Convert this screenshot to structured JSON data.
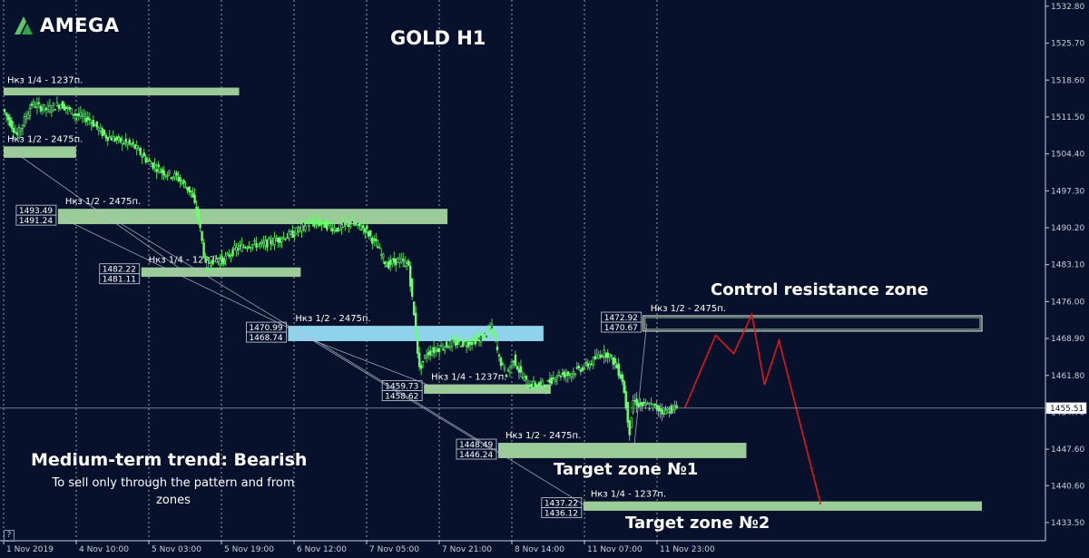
{
  "logo": {
    "text": "AMEGA"
  },
  "title": "GOLD H1",
  "trend": {
    "title": "Medium-term trend: Bearish",
    "note": "To sell only through the pattern and from zones"
  },
  "annotations": {
    "control_zone": "Control resistance zone",
    "target1": "Target zone №1",
    "target2": "Target zone №2",
    "help": "?"
  },
  "colors": {
    "background": "#07112b",
    "candle": "#6bff6b",
    "zone_green": "#9ccb9a",
    "zone_blue": "#8fd2ec",
    "forecast": "#e01818",
    "grid": "#ffffff"
  },
  "chart_data": {
    "type": "candlestick",
    "title": "GOLD H1",
    "ylim": [
      1430,
      1534
    ],
    "y_ticks": [
      "1532.80",
      "1525.70",
      "1518.60",
      "1511.50",
      "1504.40",
      "1497.30",
      "1490.20",
      "1483.10",
      "1476.00",
      "1468.90",
      "1461.80",
      "1454.70",
      "1447.60",
      "1440.60",
      "1433.50"
    ],
    "x_ticks": [
      "1 Nov 2019",
      "4 Nov 10:00",
      "5 Nov 03:00",
      "5 Nov 19:00",
      "6 Nov 12:00",
      "7 Nov 05:00",
      "7 Nov 21:00",
      "8 Nov 14:00",
      "11 Nov 07:00",
      "11 Nov 23:00"
    ],
    "current_price": "1455.51",
    "price_path": [
      [
        0,
        1513
      ],
      [
        8,
        1508
      ],
      [
        16,
        1514
      ],
      [
        24,
        1513
      ],
      [
        32,
        1514
      ],
      [
        40,
        1512
      ],
      [
        48,
        1511
      ],
      [
        56,
        1508
      ],
      [
        64,
        1507
      ],
      [
        72,
        1506
      ],
      [
        80,
        1503
      ],
      [
        88,
        1501
      ],
      [
        96,
        1500
      ],
      [
        104,
        1497
      ],
      [
        108,
        1492
      ],
      [
        112,
        1483
      ],
      [
        116,
        1484
      ],
      [
        122,
        1484
      ],
      [
        128,
        1486
      ],
      [
        136,
        1487
      ],
      [
        144,
        1487
      ],
      [
        152,
        1488
      ],
      [
        160,
        1489
      ],
      [
        168,
        1491
      ],
      [
        176,
        1491
      ],
      [
        184,
        1490
      ],
      [
        192,
        1491
      ],
      [
        200,
        1490
      ],
      [
        206,
        1487
      ],
      [
        212,
        1483
      ],
      [
        218,
        1484
      ],
      [
        224,
        1483
      ],
      [
        228,
        1470
      ],
      [
        230,
        1463
      ],
      [
        234,
        1466
      ],
      [
        240,
        1467
      ],
      [
        248,
        1468
      ],
      [
        256,
        1468
      ],
      [
        264,
        1469
      ],
      [
        270,
        1471
      ],
      [
        274,
        1465
      ],
      [
        278,
        1462
      ],
      [
        282,
        1465
      ],
      [
        286,
        1462
      ],
      [
        290,
        1460
      ],
      [
        296,
        1460
      ],
      [
        300,
        1460
      ],
      [
        306,
        1462
      ],
      [
        312,
        1462
      ],
      [
        318,
        1463
      ],
      [
        324,
        1464
      ],
      [
        330,
        1466
      ],
      [
        334,
        1466
      ],
      [
        338,
        1464
      ],
      [
        342,
        1461
      ],
      [
        346,
        1451
      ],
      [
        348,
        1457
      ],
      [
        352,
        1456
      ],
      [
        358,
        1456
      ],
      [
        364,
        1455
      ],
      [
        372,
        1455.51
      ]
    ],
    "levels": [
      {
        "label": "Нкз 1/4 - 1237п.",
        "high": 1516.8,
        "low": 1516.0,
        "x_start": 0,
        "x_end": 130,
        "color": "green"
      },
      {
        "label": "Нкз 1/2 - 2475п.",
        "high": 1505.5,
        "low": 1504.0,
        "x_start": 0,
        "x_end": 40,
        "color": "green"
      },
      {
        "label": "Нкз 1/2 - 2475п.",
        "high": 1493.49,
        "low": 1491.24,
        "x_start": 30,
        "x_end": 245,
        "color": "green",
        "show_prices": true
      },
      {
        "label": "Нкз 1/4 - 1237п.",
        "high": 1482.22,
        "low": 1481.11,
        "x_start": 76,
        "x_end": 164,
        "color": "green",
        "show_prices": true
      },
      {
        "label": "Нкз 1/2 - 2475п.",
        "high": 1470.99,
        "low": 1468.74,
        "x_start": 157,
        "x_end": 298,
        "color": "blue",
        "show_prices": true
      },
      {
        "label": "Нкз 1/4 - 1237п.",
        "high": 1459.73,
        "low": 1458.62,
        "x_start": 232,
        "x_end": 302,
        "color": "green",
        "show_prices": true
      },
      {
        "label": "Нкз 1/2 - 2475п.",
        "high": 1448.49,
        "low": 1446.24,
        "x_start": 273,
        "x_end": 410,
        "color": "green",
        "show_prices": true
      },
      {
        "label": "Нкз 1/4 - 1237п.",
        "high": 1437.22,
        "low": 1436.12,
        "x_start": 320,
        "x_end": 540,
        "color": "green",
        "show_prices": true
      },
      {
        "label": "Нкз 1/2 - 2475п.",
        "high": 1472.92,
        "low": 1470.67,
        "x_start": 353,
        "x_end": 540,
        "color": "outline",
        "show_prices": true
      }
    ],
    "forecast": [
      [
        376,
        1455.5
      ],
      [
        393,
        1469.5
      ],
      [
        403,
        1466
      ],
      [
        413,
        1473.5
      ],
      [
        420,
        1460
      ],
      [
        428,
        1468.5
      ],
      [
        451,
        1437
      ]
    ]
  }
}
